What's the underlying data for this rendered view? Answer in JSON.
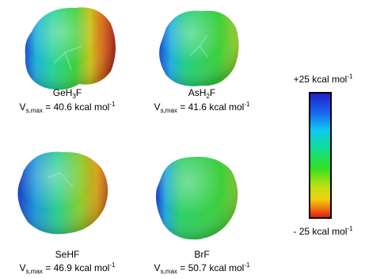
{
  "molecules": [
    {
      "name": [
        "GeH",
        "3",
        "F"
      ],
      "vs_max": 40.6
    },
    {
      "name": [
        "AsH",
        "2",
        "F"
      ],
      "vs_max": 41.6
    },
    {
      "name": [
        "SeHF"
      ],
      "vs_max": 46.9
    },
    {
      "name": [
        "BrF"
      ],
      "vs_max": 50.7
    }
  ],
  "vs_label": {
    "symbol": "V",
    "subscript": "s,max",
    "equals": "=",
    "unit": "kcal mol",
    "exponent": "-1"
  },
  "scale": {
    "max": {
      "text": "+25 kcal mol",
      "exponent": "-1"
    },
    "min": {
      "text": "- 25 kcal mol",
      "exponent": "-1"
    }
  }
}
